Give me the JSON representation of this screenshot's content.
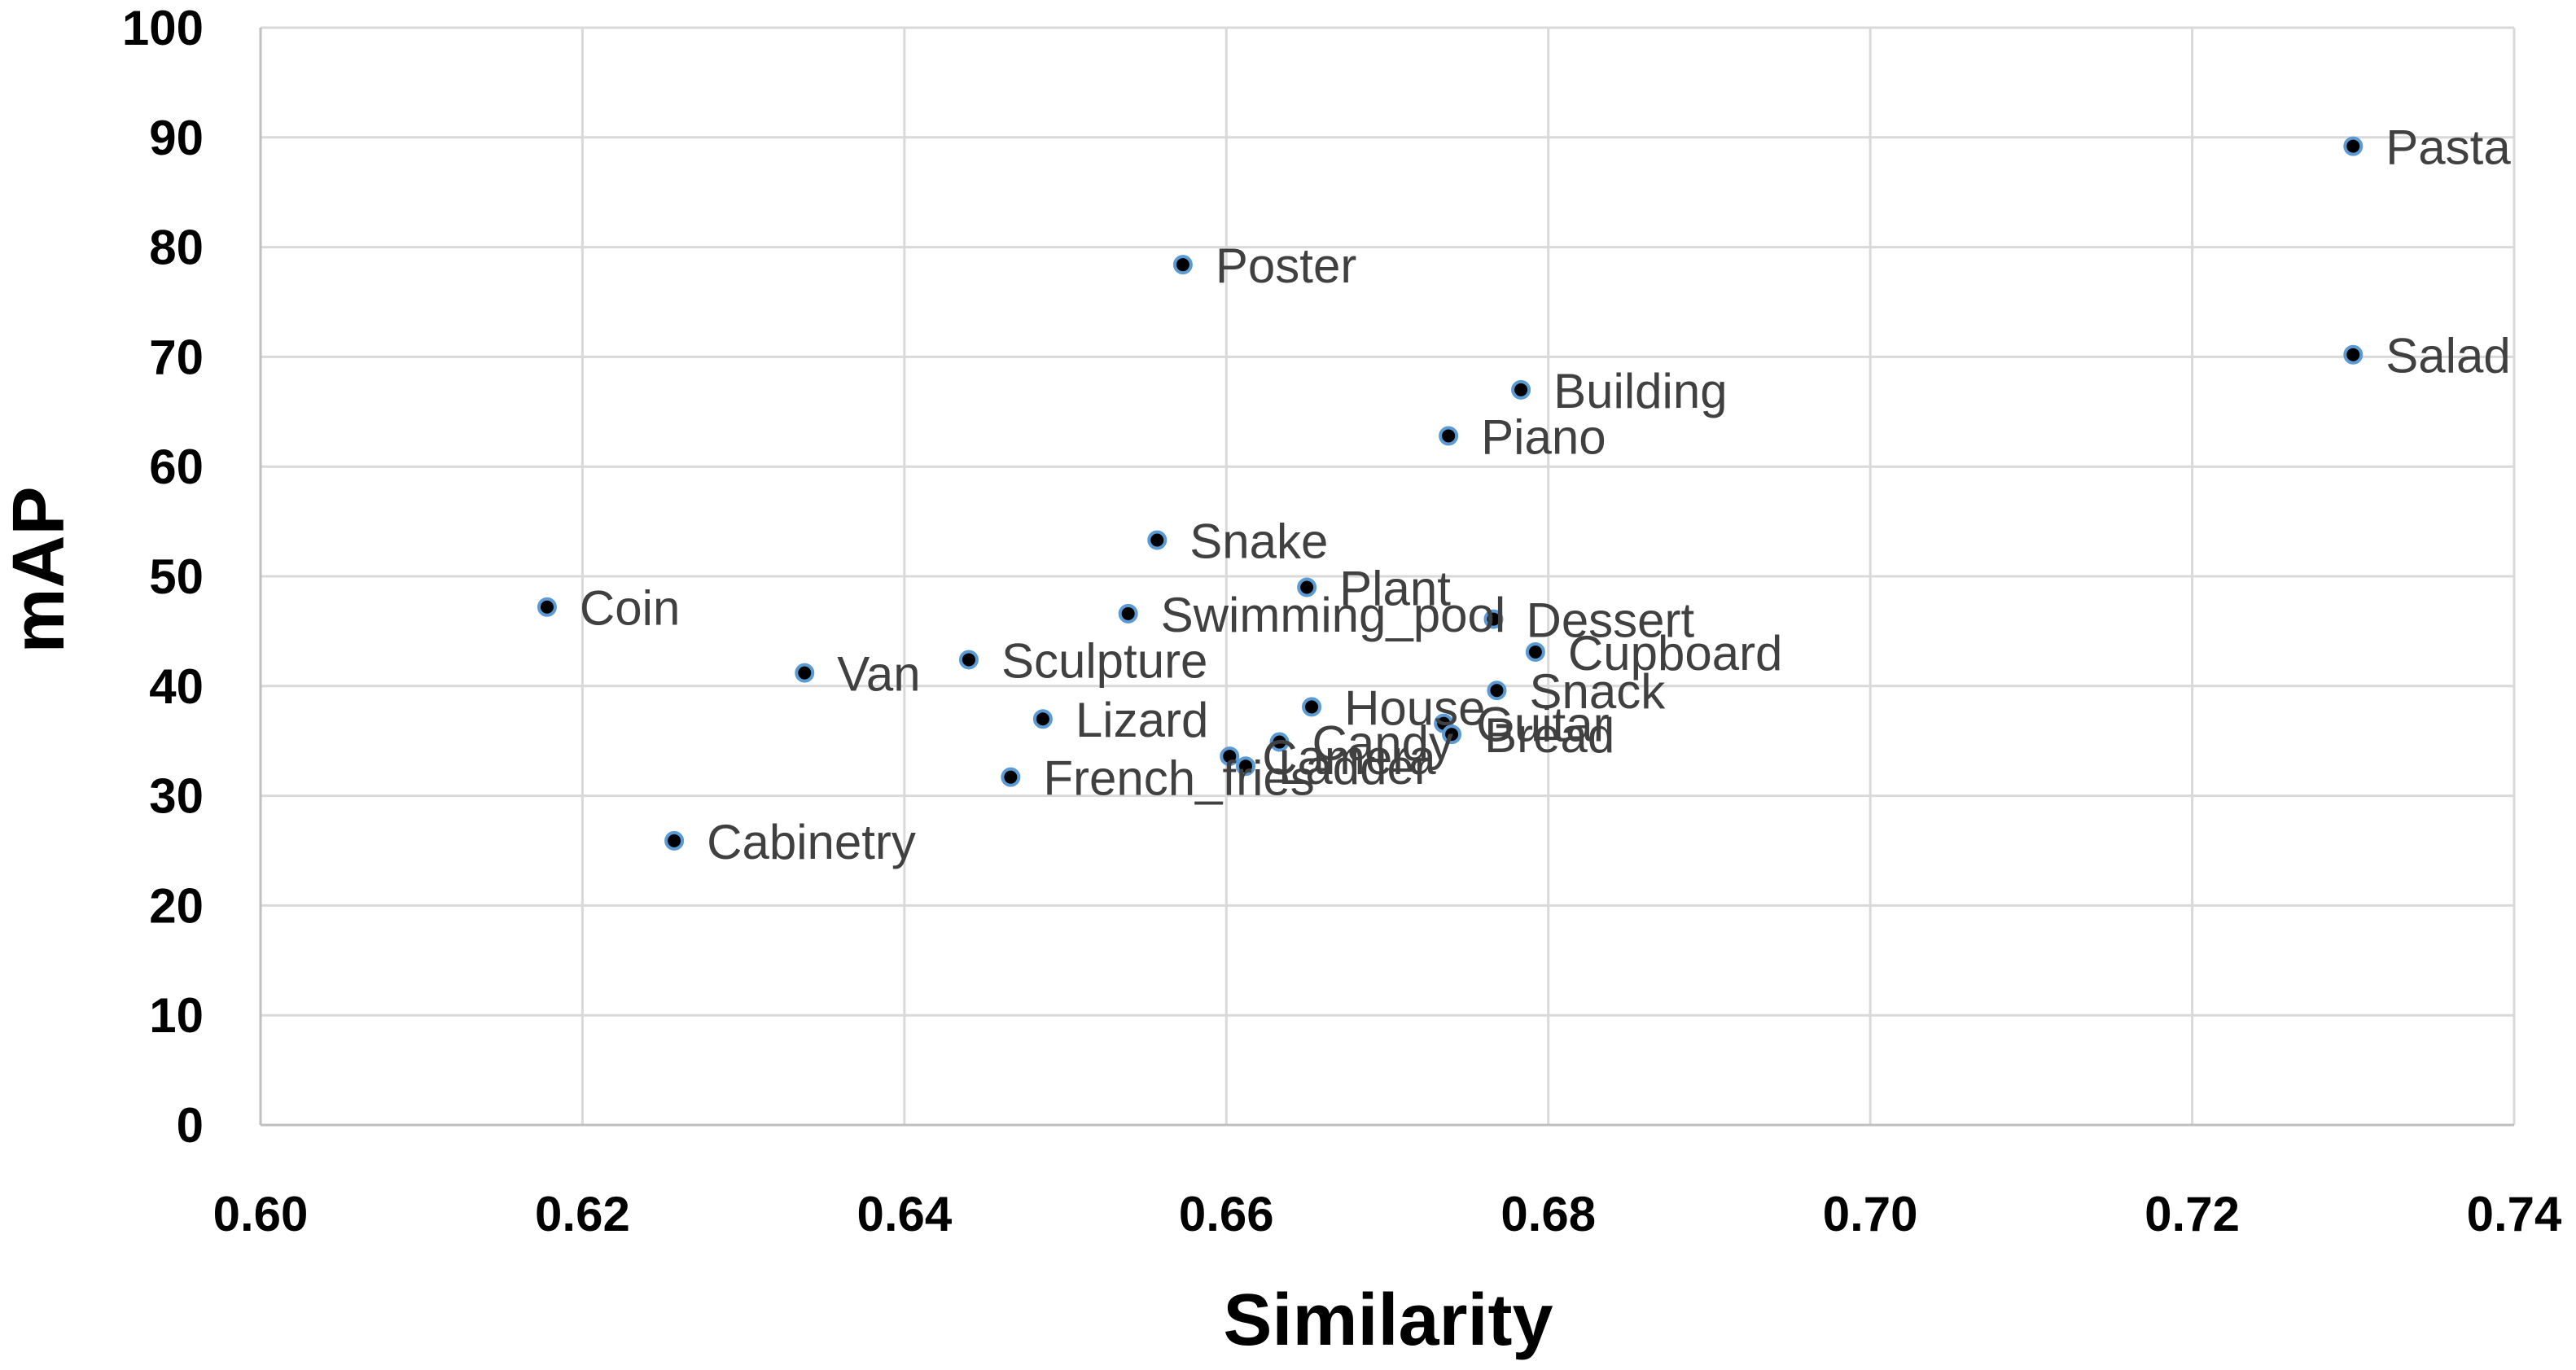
{
  "chart_data": {
    "type": "scatter",
    "title": "",
    "xlabel": "Similarity",
    "ylabel": "mAP",
    "xlim": [
      0.6,
      0.74
    ],
    "ylim": [
      0,
      100
    ],
    "xticks": [
      "0.60",
      "0.62",
      "0.64",
      "0.66",
      "0.68",
      "0.70",
      "0.72",
      "0.74"
    ],
    "yticks": [
      "0",
      "10",
      "20",
      "30",
      "40",
      "50",
      "60",
      "70",
      "80",
      "90",
      "100"
    ],
    "grid": true,
    "marker_color": "#000000",
    "marker_edge_color": "#5b9bd5",
    "points": [
      {
        "label": "Pasta",
        "x": 0.73,
        "y": 89.2
      },
      {
        "label": "Salad",
        "x": 0.73,
        "y": 70.2
      },
      {
        "label": "Poster",
        "x": 0.6573,
        "y": 78.4
      },
      {
        "label": "Building",
        "x": 0.6783,
        "y": 67.0
      },
      {
        "label": "Piano",
        "x": 0.6738,
        "y": 62.8
      },
      {
        "label": "Snake",
        "x": 0.6557,
        "y": 53.3
      },
      {
        "label": "Plant",
        "x": 0.665,
        "y": 49.0
      },
      {
        "label": "Swimming_pool",
        "x": 0.6539,
        "y": 46.6
      },
      {
        "label": "Dessert",
        "x": 0.6766,
        "y": 46.1
      },
      {
        "label": "Cupboard",
        "x": 0.6792,
        "y": 43.1
      },
      {
        "label": "Coin",
        "x": 0.6178,
        "y": 47.2
      },
      {
        "label": "Van",
        "x": 0.6338,
        "y": 41.2
      },
      {
        "label": "Sculpture",
        "x": 0.644,
        "y": 42.4
      },
      {
        "label": "Snack",
        "x": 0.6768,
        "y": 39.6
      },
      {
        "label": "House",
        "x": 0.6653,
        "y": 38.1
      },
      {
        "label": "Guitar",
        "x": 0.6735,
        "y": 36.6
      },
      {
        "label": "Bread",
        "x": 0.674,
        "y": 35.6
      },
      {
        "label": "Lizard",
        "x": 0.6486,
        "y": 37.0
      },
      {
        "label": "Candy",
        "x": 0.6633,
        "y": 34.9
      },
      {
        "label": "Camera",
        "x": 0.6602,
        "y": 33.6
      },
      {
        "label": "Ladder",
        "x": 0.6612,
        "y": 32.7
      },
      {
        "label": "French_fries",
        "x": 0.6466,
        "y": 31.7
      },
      {
        "label": "Cabinetry",
        "x": 0.6257,
        "y": 25.9
      }
    ]
  }
}
